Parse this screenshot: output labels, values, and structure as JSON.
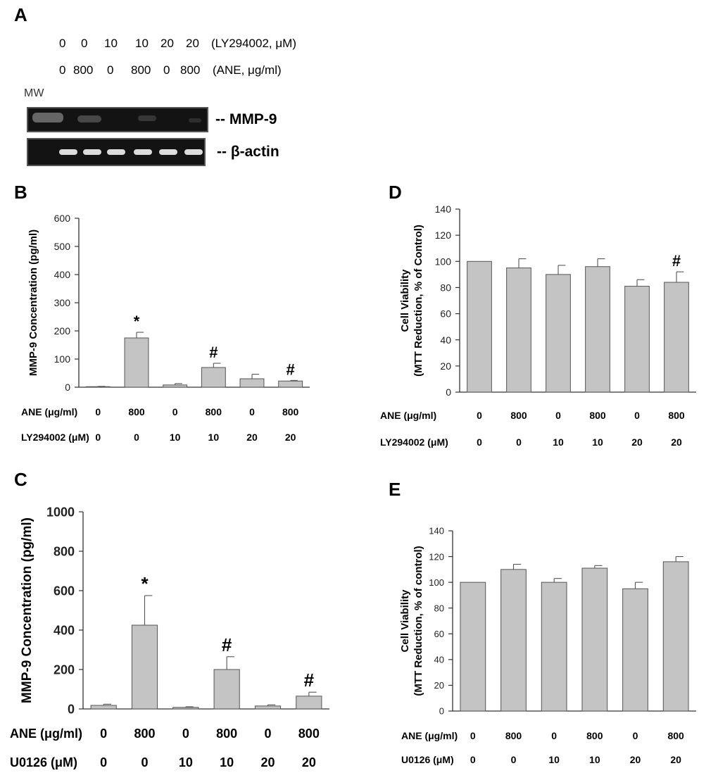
{
  "panel_a": {
    "label": "A",
    "ly_row": [
      "0",
      "0",
      "10",
      "10",
      "20",
      "20"
    ],
    "ly_unit": "(LY294002, μM)",
    "ane_row": [
      "0",
      "800",
      "0",
      "800",
      "0",
      "800"
    ],
    "ane_unit": "(ANE, μg/ml)",
    "mw_label": "MW",
    "mmp9_label": "-- MMP-9",
    "actin_label": "-- β-actin"
  },
  "chart_data": [
    {
      "id": "B",
      "panel_label": "B",
      "type": "bar",
      "ylabel": "MMP-9 Concentration (pg/ml)",
      "ylim": [
        0,
        600
      ],
      "yticks": [
        0,
        100,
        200,
        300,
        400,
        500,
        600
      ],
      "values": [
        2,
        175,
        8,
        70,
        30,
        22
      ],
      "errors": [
        1,
        20,
        5,
        15,
        16,
        2
      ],
      "annotations": [
        "",
        "*",
        "",
        "#",
        "",
        "#"
      ],
      "row1_label": "ANE (μg/ml)",
      "row1": [
        "0",
        "800",
        "0",
        "800",
        "0",
        "800"
      ],
      "row2_label": "LY294002 (μM)",
      "row2": [
        "0",
        "0",
        "10",
        "10",
        "20",
        "20"
      ]
    },
    {
      "id": "C",
      "panel_label": "C",
      "type": "bar",
      "ylabel": "MMP-9 Concentration (pg/ml)",
      "ylim": [
        0,
        1000
      ],
      "yticks": [
        0,
        200,
        400,
        600,
        800,
        1000
      ],
      "values": [
        18,
        425,
        8,
        200,
        15,
        65
      ],
      "errors": [
        6,
        150,
        3,
        65,
        6,
        20
      ],
      "annotations": [
        "",
        "*",
        "",
        "#",
        "",
        "#"
      ],
      "row1_label": "ANE (μg/ml)",
      "row1": [
        "0",
        "800",
        "0",
        "800",
        "0",
        "800"
      ],
      "row2_label": "U0126 (μM)",
      "row2": [
        "0",
        "0",
        "10",
        "10",
        "20",
        "20"
      ]
    },
    {
      "id": "D",
      "panel_label": "D",
      "type": "bar",
      "ylabel_lines": [
        "Cell Viability",
        "(MTT Reduction, % of Control)"
      ],
      "ylim": [
        0,
        140
      ],
      "yticks": [
        0,
        20,
        40,
        60,
        80,
        100,
        120,
        140
      ],
      "values": [
        100,
        95,
        90,
        96,
        81,
        84
      ],
      "errors": [
        0,
        7,
        7,
        6,
        5,
        8
      ],
      "annotations": [
        "",
        "",
        "",
        "",
        "",
        "#"
      ],
      "row1_label": "ANE (μg/ml)",
      "row1": [
        "0",
        "800",
        "0",
        "800",
        "0",
        "800"
      ],
      "row2_label": "LY294002 (μM)",
      "row2": [
        "0",
        "0",
        "10",
        "10",
        "20",
        "20"
      ]
    },
    {
      "id": "E",
      "panel_label": "E",
      "type": "bar",
      "ylabel_lines": [
        "Cell Viability",
        "(MTT Reduction, % of control)"
      ],
      "ylim": [
        0,
        140
      ],
      "yticks": [
        0,
        20,
        40,
        60,
        80,
        100,
        120,
        140
      ],
      "values": [
        100,
        110,
        100,
        111,
        95,
        116
      ],
      "errors": [
        0,
        4,
        3,
        2,
        5,
        4
      ],
      "annotations": [
        "",
        "",
        "",
        "",
        "",
        ""
      ],
      "row1_label": "ANE (μg/ml)",
      "row1": [
        "0",
        "800",
        "0",
        "800",
        "0",
        "800"
      ],
      "row2_label": "U0126 (μM)",
      "row2": [
        "0",
        "0",
        "10",
        "10",
        "20",
        "20"
      ]
    }
  ],
  "colors": {
    "bar_fill": "#c4c4c4",
    "bar_stroke": "#555555",
    "axis": "#333333"
  }
}
